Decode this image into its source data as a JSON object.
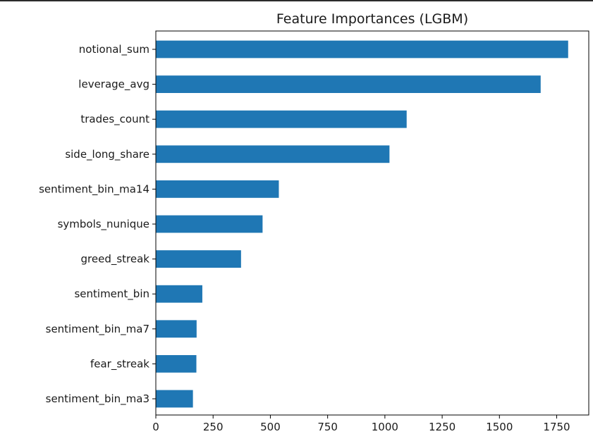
{
  "chart_data": {
    "type": "bar",
    "orientation": "horizontal",
    "title": "Feature Importances (LGBM)",
    "xlabel": "",
    "ylabel": "",
    "categories": [
      "notional_sum",
      "leverage_avg",
      "trades_count",
      "side_long_share",
      "sentiment_bin_ma14",
      "symbols_nunique",
      "greed_streak",
      "sentiment_bin",
      "sentiment_bin_ma7",
      "fear_streak",
      "sentiment_bin_ma3"
    ],
    "values": [
      1800,
      1680,
      1095,
      1020,
      537,
      466,
      372,
      203,
      178,
      177,
      162
    ],
    "xlim": [
      0,
      1890
    ],
    "xticks": [
      0,
      250,
      500,
      750,
      1000,
      1250,
      1500,
      1750
    ],
    "grid": false,
    "legend": "none",
    "bar_color": "#1f77b4"
  }
}
